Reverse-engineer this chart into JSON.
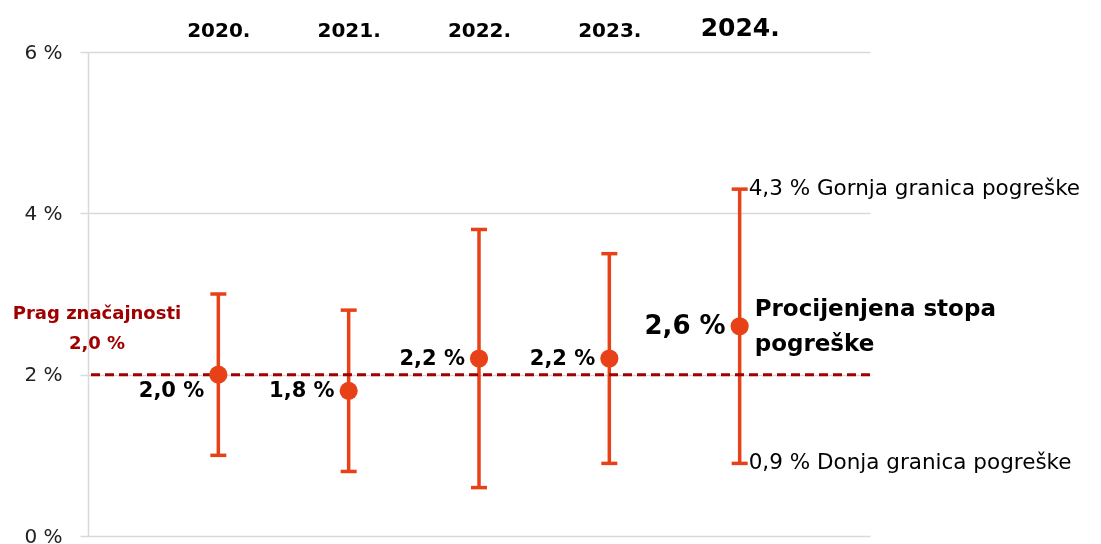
{
  "chart_data": {
    "type": "scatter",
    "categories": [
      "2020.",
      "2021.",
      "2022.",
      "2023.",
      "2024."
    ],
    "values": [
      2.0,
      1.8,
      2.2,
      2.2,
      2.6
    ],
    "color": "#e84118",
    "errors": [
      [
        1.0,
        3.0
      ],
      [
        0.8,
        2.8
      ],
      [
        0.6,
        3.8
      ],
      [
        0.9,
        3.5
      ],
      [
        0.9,
        4.3
      ]
    ],
    "value_labels": [
      "2,0 %",
      "1,8 %",
      "2,2 %",
      "2,2 %",
      "2,6 %"
    ],
    "ylim": [
      0,
      6
    ],
    "yticks": [
      {
        "value": 0,
        "label": "0 %"
      },
      {
        "value": 2,
        "label": "2 %"
      },
      {
        "value": 4,
        "label": "4 %"
      },
      {
        "value": 6,
        "label": "6 %"
      }
    ],
    "grid": "y",
    "marker": "circle",
    "ref_lines": [
      {
        "axis": "y",
        "value": 2.0,
        "label": "Prag značajnosti\n2,0 %",
        "color": "#a00000",
        "line_style": "dashed"
      }
    ],
    "annotations": [
      {
        "text": "4,3 % Gornja granica pogreške",
        "x": "2024.",
        "y": 4.3
      },
      {
        "text": "Procijenjena stopa\npogreške",
        "x": "2024.",
        "y": 2.6
      },
      {
        "text": "0,9 % Donja granica pogreške",
        "x": "2024.",
        "y": 0.9
      }
    ]
  }
}
